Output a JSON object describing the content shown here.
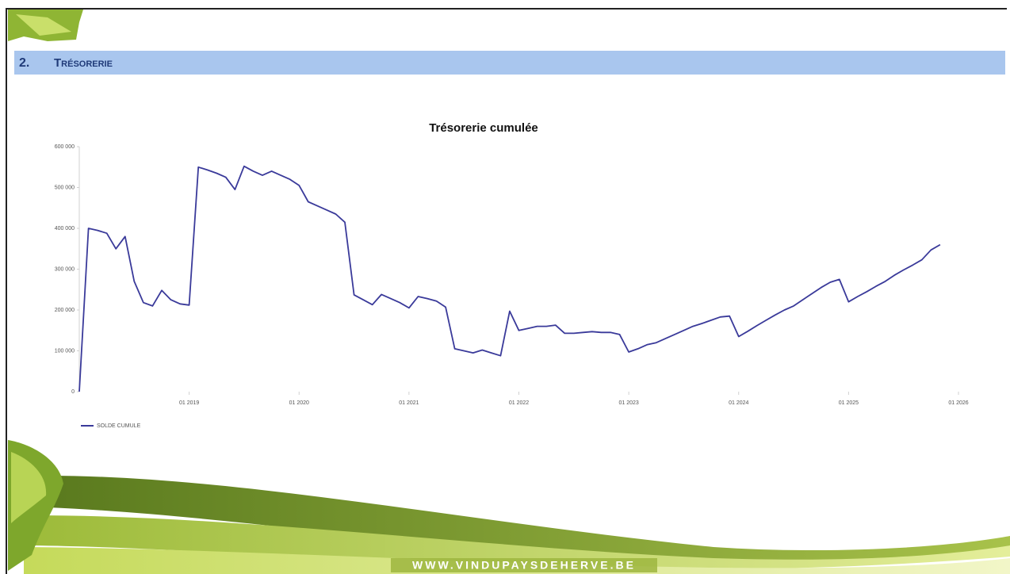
{
  "header": {
    "number": "2.",
    "title": "Trésorerie"
  },
  "footer": "WWW.VINDUPAYSDEHERVE.BE",
  "chart_data": {
    "type": "line",
    "title": "Trésorerie cumulée",
    "x": [
      "01 2018",
      "02 2018",
      "03 2018",
      "04 2018",
      "05 2018",
      "06 2018",
      "07 2018",
      "08 2018",
      "09 2018",
      "10 2018",
      "11 2018",
      "12 2018",
      "01 2019",
      "02 2019",
      "03 2019",
      "04 2019",
      "05 2019",
      "06 2019",
      "07 2019",
      "08 2019",
      "09 2019",
      "10 2019",
      "11 2019",
      "12 2019",
      "01 2020",
      "02 2020",
      "03 2020",
      "04 2020",
      "05 2020",
      "06 2020",
      "07 2020",
      "08 2020",
      "09 2020",
      "10 2020",
      "11 2020",
      "12 2020",
      "01 2021",
      "02 2021",
      "03 2021",
      "04 2021",
      "05 2021",
      "06 2021",
      "07 2021",
      "08 2021",
      "09 2021",
      "10 2021",
      "11 2021",
      "12 2021",
      "01 2022",
      "02 2022",
      "03 2022",
      "04 2022",
      "05 2022",
      "06 2022",
      "07 2022",
      "08 2022",
      "09 2022",
      "10 2022",
      "11 2022",
      "12 2022",
      "01 2023",
      "02 2023",
      "03 2023",
      "04 2023",
      "05 2023",
      "06 2023",
      "07 2023",
      "08 2023",
      "09 2023",
      "10 2023",
      "11 2023",
      "12 2023",
      "01 2024",
      "02 2024",
      "03 2024",
      "04 2024",
      "05 2024",
      "06 2024",
      "07 2024",
      "08 2024",
      "09 2024",
      "10 2024",
      "11 2024",
      "12 2024",
      "01 2025",
      "02 2025",
      "03 2025",
      "04 2025",
      "05 2025",
      "06 2025",
      "07 2025",
      "08 2025",
      "09 2025",
      "10 2025",
      "11 2025"
    ],
    "series": [
      {
        "name": "SOLDE CUMULE",
        "color": "#3a3a9a",
        "values": [
          0,
          400000,
          395000,
          388000,
          350000,
          380000,
          270000,
          218000,
          210000,
          248000,
          225000,
          215000,
          212000,
          550000,
          543000,
          535000,
          525000,
          495000,
          552000,
          540000,
          530000,
          540000,
          530000,
          520000,
          505000,
          465000,
          455000,
          445000,
          435000,
          415000,
          237000,
          225000,
          213000,
          238000,
          228000,
          218000,
          205000,
          233000,
          228000,
          222000,
          207000,
          105000,
          100000,
          95000,
          102000,
          95000,
          88000,
          197000,
          150000,
          155000,
          160000,
          160000,
          163000,
          143000,
          143000,
          145000,
          147000,
          145000,
          145000,
          140000,
          97000,
          105000,
          115000,
          120000,
          130000,
          140000,
          150000,
          160000,
          167000,
          175000,
          183000,
          185000,
          135000,
          148000,
          162000,
          175000,
          188000,
          200000,
          210000,
          225000,
          240000,
          255000,
          268000,
          275000,
          220000,
          233000,
          245000,
          258000,
          270000,
          285000,
          298000,
          310000,
          323000,
          347000,
          360000
        ]
      }
    ],
    "xlim": [
      "01 2018",
      "01 2026"
    ],
    "xticks": [
      "01 2019",
      "01 2020",
      "01 2021",
      "01 2022",
      "01 2023",
      "01 2024",
      "01 2025",
      "01 2026"
    ],
    "ylim": [
      0,
      600000
    ],
    "yticks": [
      0,
      {
        "value": 100000,
        "label": "100 000"
      },
      {
        "value": 200000,
        "label": "200 000"
      },
      {
        "value": 300000,
        "label": "300 000"
      },
      {
        "value": 400000,
        "label": "400 000"
      },
      {
        "value": 500000,
        "label": "500 000"
      },
      {
        "value": 600000,
        "label": "600 000"
      }
    ],
    "legend": "bottom-left"
  }
}
